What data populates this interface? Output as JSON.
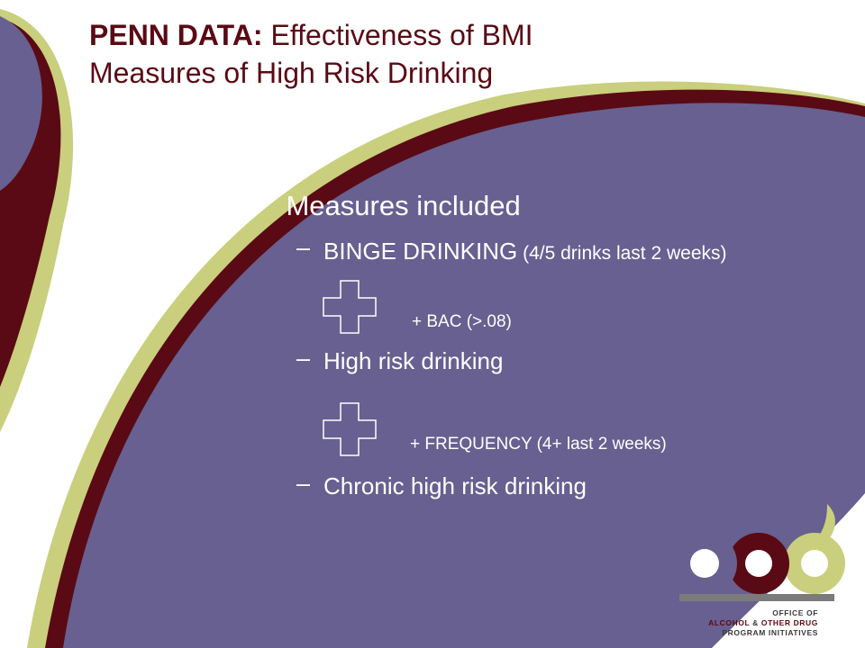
{
  "slide": {
    "title_strong": "PENN DATA:",
    "title_rest": " Effectiveness of BMI",
    "title_line2": "Measures of High Risk Drinking",
    "bullet": "Measures included",
    "dash_symbol": "–",
    "items": [
      {
        "label": "BINGE DRINKING",
        "detail": " (4/5 drinks last 2 weeks)"
      },
      {
        "label": "High risk drinking"
      },
      {
        "label": "Chronic high risk drinking"
      }
    ],
    "plus_notes": [
      "+ BAC (>.08)",
      "+ FREQUENCY (4+ last 2 weeks)"
    ]
  },
  "logo": {
    "letters": "aod",
    "line1": "OFFICE OF",
    "line2_a": "ALCOHOL",
    "line2_amp": " & ",
    "line2_b": "OTHER DRUG",
    "line3": "PROGRAM INITIATIVES"
  },
  "colors": {
    "purple": "#676090",
    "maroon": "#5a0a14",
    "lime": "#c9cf7c",
    "text_white": "#ffffff"
  },
  "icons": [
    "plus-outline-icon",
    "plus-outline-icon"
  ]
}
